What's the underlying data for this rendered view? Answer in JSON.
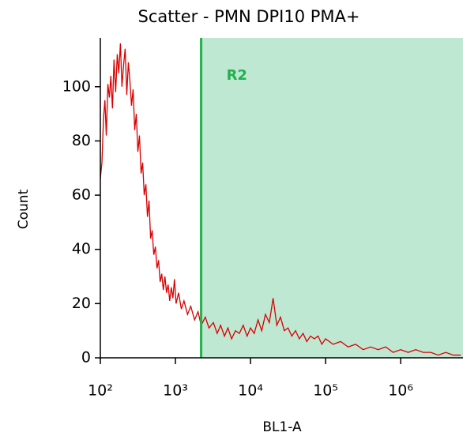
{
  "chart_data": {
    "type": "line",
    "title": "Scatter - PMN DPI10 PMA+",
    "x_label": "BL1-A",
    "y_label": "Count",
    "x_scale": "log",
    "xlim": [
      100,
      6760000
    ],
    "ylim": [
      0,
      118
    ],
    "xticks": [
      {
        "value": 100,
        "label": "10²"
      },
      {
        "value": 1000,
        "label": "10³"
      },
      {
        "value": 10000,
        "label": "10⁴"
      },
      {
        "value": 100000,
        "label": "10⁵"
      },
      {
        "value": 1000000,
        "label": "10⁶"
      }
    ],
    "yticks": [
      0,
      20,
      40,
      60,
      80,
      100
    ],
    "gate": {
      "name": "R2",
      "x_start": 2200,
      "color": "#22b14c",
      "fill": "#bfe8d3"
    },
    "x": [
      100,
      105,
      110,
      115,
      120,
      126,
      132,
      138,
      145,
      152,
      160,
      168,
      176,
      185,
      194,
      204,
      214,
      225,
      236,
      248,
      260,
      273,
      287,
      301,
      316,
      332,
      349,
      366,
      384,
      404,
      424,
      445,
      467,
      490,
      515,
      541,
      568,
      596,
      626,
      657,
      690,
      725,
      761,
      799,
      839,
      881,
      925,
      971,
      1020,
      1100,
      1200,
      1300,
      1450,
      1600,
      1800,
      2000,
      2200,
      2500,
      2800,
      3200,
      3600,
      4000,
      4500,
      5000,
      5600,
      6300,
      7100,
      8000,
      9000,
      10000,
      11200,
      12600,
      14100,
      15800,
      17800,
      20000,
      22400,
      25100,
      28200,
      31600,
      35500,
      39800,
      44700,
      50100,
      56200,
      63100,
      70800,
      79400,
      89100,
      100000,
      125900,
      158500,
      199500,
      251200,
      316200,
      398100,
      501200,
      631000,
      794300,
      1000000,
      1259000,
      1585000,
      1995000,
      2512000,
      3162000,
      3981000,
      5012000,
      6310000
    ],
    "series": [
      {
        "color": "#d80000",
        "values": [
          66,
          72,
          88,
          95,
          82,
          101,
          96,
          104,
          92,
          110,
          98,
          112,
          105,
          116,
          100,
          108,
          114,
          97,
          109,
          102,
          93,
          99,
          84,
          90,
          76,
          82,
          68,
          72,
          60,
          64,
          52,
          58,
          44,
          47,
          38,
          41,
          33,
          36,
          28,
          31,
          25,
          30,
          24,
          27,
          21,
          26,
          22,
          29,
          20,
          24,
          18,
          21,
          16,
          19,
          14,
          17,
          12,
          15,
          11,
          13,
          9,
          12,
          8,
          11,
          7,
          10,
          9,
          12,
          8,
          11,
          9,
          14,
          10,
          16,
          13,
          22,
          12,
          15,
          10,
          11,
          8,
          10,
          7,
          9,
          6,
          8,
          7,
          8,
          5,
          7,
          5,
          6,
          4,
          5,
          3,
          4,
          3,
          4,
          2,
          3,
          2,
          3,
          2,
          2,
          1,
          2,
          1,
          1
        ]
      }
    ]
  }
}
